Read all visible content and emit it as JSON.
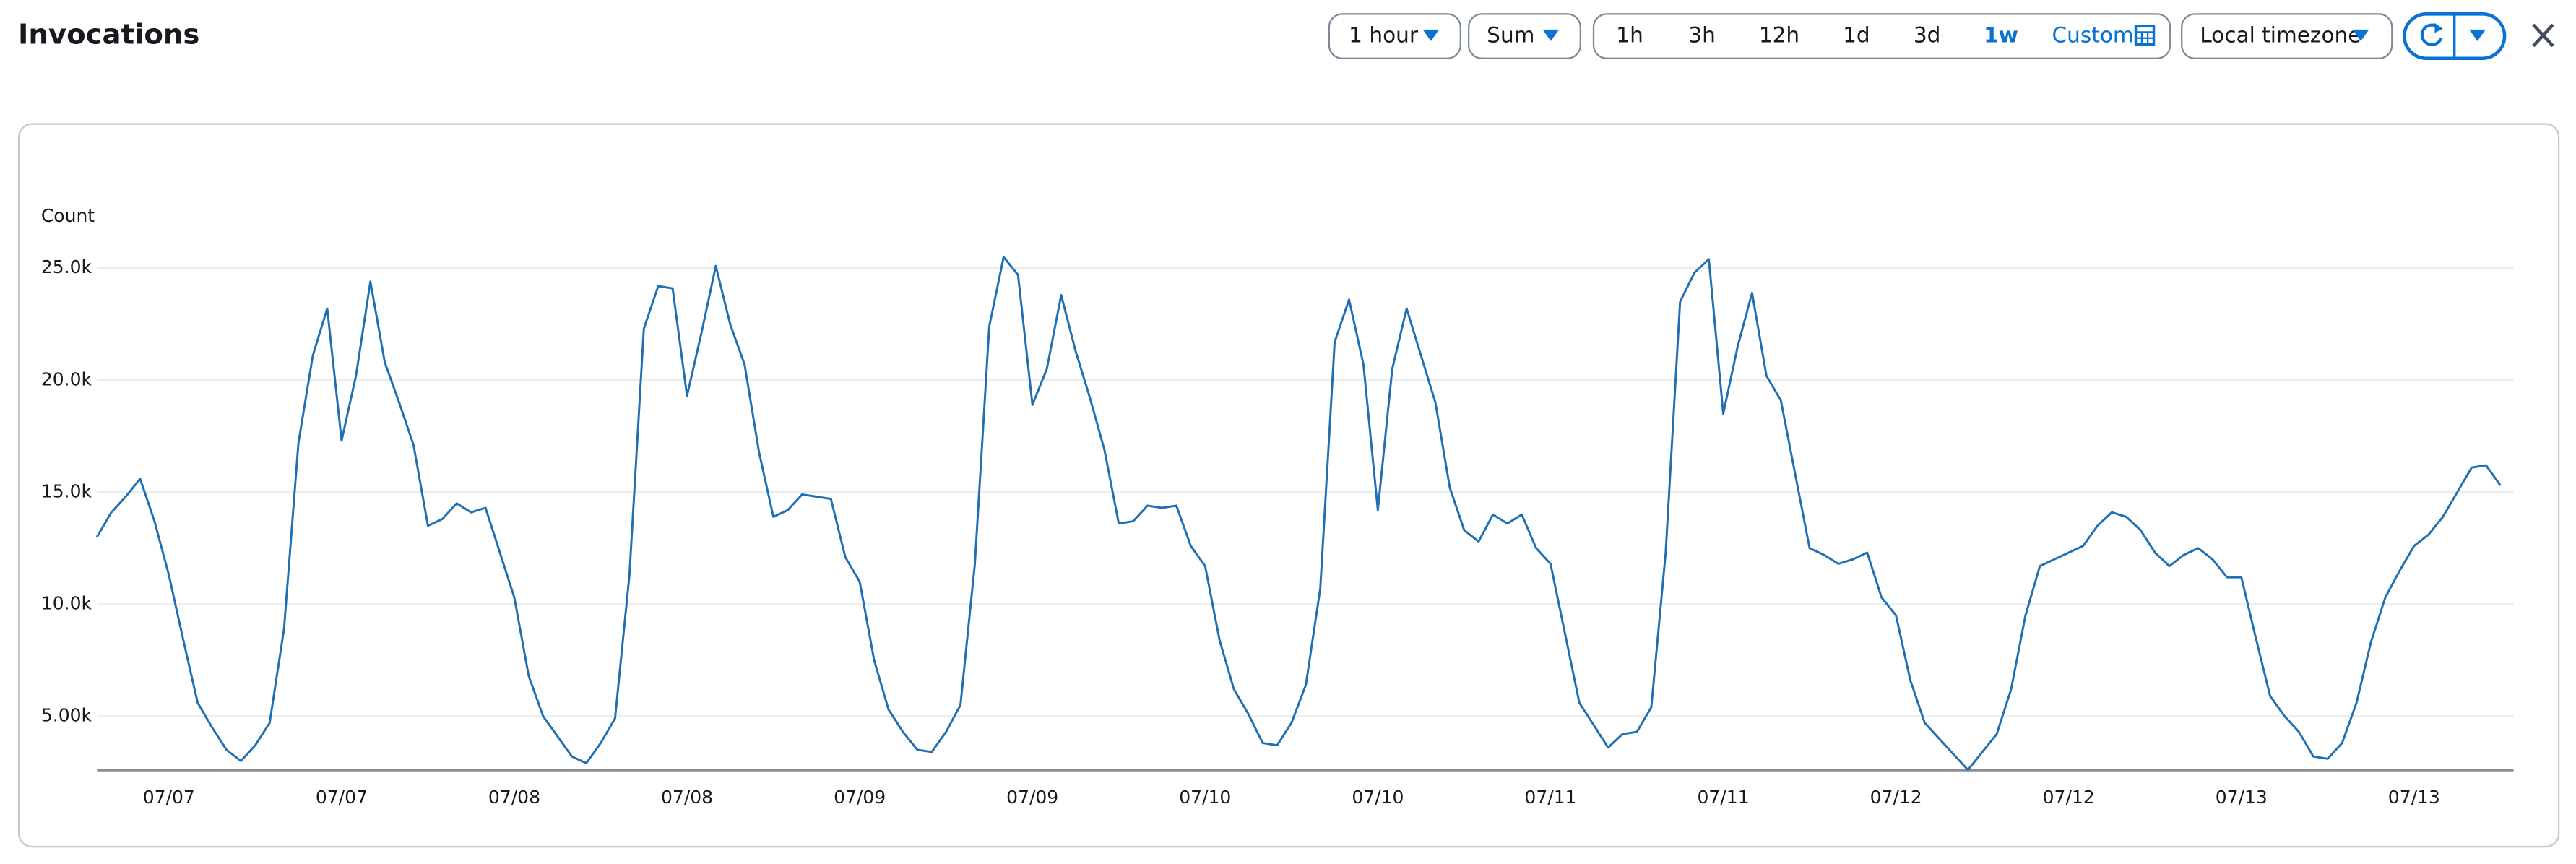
{
  "toolbar": {
    "period": "1 hour",
    "statistic": "Sum",
    "ranges": [
      "1h",
      "3h",
      "12h",
      "1d",
      "3d",
      "1w"
    ],
    "selected_range": 5,
    "custom": "Custom",
    "timezone": "Local timezone"
  },
  "chart_data": {
    "type": "line",
    "title": "Invocations",
    "y_label": "Count",
    "color": "#1f6fb2",
    "grid": true,
    "ylim": [
      2580,
      27000
    ],
    "yticks": [
      {
        "value": 5000,
        "label": "5.00k"
      },
      {
        "value": 10000,
        "label": "10.0k"
      },
      {
        "value": 15000,
        "label": "15.0k"
      },
      {
        "value": 20000,
        "label": "20.0k"
      },
      {
        "value": 25000,
        "label": "25.0k"
      }
    ],
    "categories": [
      null,
      null,
      null,
      null,
      null,
      "07/07",
      null,
      null,
      null,
      null,
      null,
      null,
      null,
      null,
      null,
      null,
      null,
      "07/07",
      null,
      null,
      null,
      null,
      null,
      null,
      null,
      null,
      null,
      null,
      null,
      "07/08",
      null,
      null,
      null,
      null,
      null,
      null,
      null,
      null,
      null,
      null,
      null,
      "07/08",
      null,
      null,
      null,
      null,
      null,
      null,
      null,
      null,
      null,
      null,
      null,
      "07/09",
      null,
      null,
      null,
      null,
      null,
      null,
      null,
      null,
      null,
      null,
      null,
      "07/09",
      null,
      null,
      null,
      null,
      null,
      null,
      null,
      null,
      null,
      null,
      null,
      "07/10",
      null,
      null,
      null,
      null,
      null,
      null,
      null,
      null,
      null,
      null,
      null,
      "07/10",
      null,
      null,
      null,
      null,
      null,
      null,
      null,
      null,
      null,
      null,
      null,
      "07/11",
      null,
      null,
      null,
      null,
      null,
      null,
      null,
      null,
      null,
      null,
      null,
      "07/11",
      null,
      null,
      null,
      null,
      null,
      null,
      null,
      null,
      null,
      null,
      null,
      "07/12",
      null,
      null,
      null,
      null,
      null,
      null,
      null,
      null,
      null,
      null,
      null,
      "07/12",
      null,
      null,
      null,
      null,
      null,
      null,
      null,
      null,
      null,
      null,
      null,
      "07/13",
      null,
      null,
      null,
      null,
      null,
      null,
      null,
      null,
      null,
      null,
      null,
      "07/13",
      null,
      null,
      null,
      null,
      null,
      null
    ],
    "values": [
      13000,
      14100,
      14800,
      15600,
      13700,
      11300,
      8400,
      5600,
      4500,
      3500,
      3000,
      3700,
      4700,
      8900,
      17200,
      21100,
      23200,
      17300,
      20200,
      24400,
      20800,
      19000,
      17100,
      13500,
      13800,
      14500,
      14100,
      14300,
      12300,
      10300,
      6800,
      5000,
      4100,
      3200,
      2900,
      3800,
      4900,
      11300,
      22300,
      24200,
      24100,
      19300,
      22100,
      25100,
      22500,
      20700,
      16800,
      13900,
      14200,
      14900,
      14800,
      14700,
      12100,
      11000,
      7500,
      5300,
      4300,
      3500,
      3400,
      4300,
      5500,
      11800,
      22400,
      25500,
      24700,
      18900,
      20500,
      23800,
      21300,
      19200,
      16900,
      13600,
      13700,
      14400,
      14300,
      14400,
      12600,
      11700,
      8400,
      6200,
      5100,
      3800,
      3700,
      4700,
      6400,
      10700,
      21700,
      23600,
      20700,
      14200,
      20500,
      23200,
      21100,
      19000,
      15200,
      13300,
      12800,
      14000,
      13600,
      14000,
      12500,
      11800,
      8700,
      5600,
      4600,
      3600,
      4200,
      4300,
      5400,
      12300,
      23500,
      24800,
      25400,
      18500,
      21500,
      23900,
      20200,
      19100,
      15800,
      12500,
      12200,
      11800,
      12000,
      12300,
      10300,
      9500,
      6600,
      4700,
      4000,
      3300,
      2600,
      3400,
      4200,
      6200,
      9500,
      11700,
      12000,
      12300,
      12600,
      13500,
      14100,
      13900,
      13300,
      12300,
      11700,
      12200,
      12500,
      12000,
      11200,
      11200,
      8500,
      5900,
      5000,
      4300,
      3200,
      3100,
      3800,
      5600,
      8300,
      10300,
      11500,
      12600,
      13100,
      13900,
      15000,
      16100,
      16200,
      15300
    ]
  }
}
